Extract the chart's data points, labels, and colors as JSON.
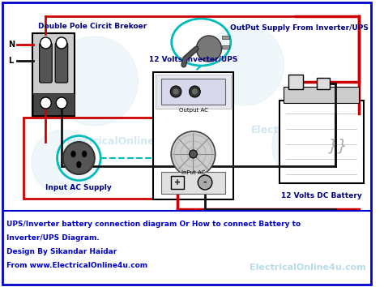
{
  "bg_color": "#ffffff",
  "border_color": "#cc0000",
  "border2_color": "#0000cc",
  "title_color": "#0000cc",
  "watermark_color": "#b0d8e8",
  "label_color": "#000080",
  "wire_red": "#cc0000",
  "wire_black": "#111111",
  "wire_cyan": "#00bbbb",
  "title_lines": [
    "UPS/Inverter battery connection diagram Or How to connect Battery to",
    "Inverter/UPS Diagram.",
    "Design By Sikandar Haidar",
    "From www.ElectricalOnline4u.com"
  ],
  "watermark_text": "ElectricalOnline4u.com",
  "labels": {
    "breaker": "Double Pole Circit Brekoer",
    "N": "N",
    "L": "L",
    "inverter": "12 Volts Inverter/UPS",
    "output_ac": "Output AC",
    "input_ac": "InPut AC",
    "input_supply": "Input AC Supply",
    "output_supply": "OutPut Supply From Inverter/UPS",
    "battery": "12 Volts DC Battery"
  }
}
